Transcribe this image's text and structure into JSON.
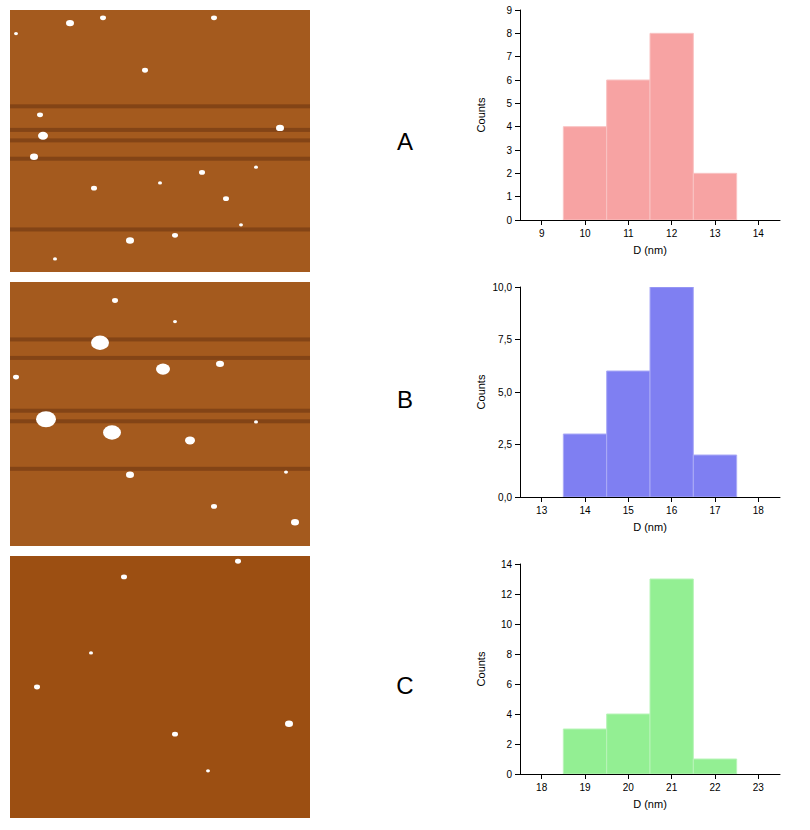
{
  "chart_data": [
    {
      "type": "histogram",
      "title": "A",
      "xlabel": "D (nm)",
      "ylabel": "Counts",
      "bins": [
        9.5,
        10.5,
        11.5,
        12.5,
        13.5
      ],
      "values": [
        4,
        6,
        8,
        2
      ],
      "color": "#f7a3a3",
      "xlim": [
        8.5,
        14.5
      ],
      "xticks": [
        9,
        10,
        11,
        12,
        13,
        14
      ],
      "ylim": [
        0,
        9
      ],
      "yticks": [
        0,
        1,
        2,
        3,
        4,
        5,
        6,
        7,
        8,
        9
      ],
      "grid": false
    },
    {
      "type": "histogram",
      "title": "B",
      "xlabel": "D (nm)",
      "ylabel": "Counts",
      "bins": [
        13.5,
        14.5,
        15.5,
        16.5,
        17.5
      ],
      "values": [
        3,
        6,
        10,
        2
      ],
      "color": "#7f7ff2",
      "xlim": [
        12.5,
        18.5
      ],
      "xticks": [
        13,
        14,
        15,
        16,
        17,
        18
      ],
      "ylim": [
        0,
        10
      ],
      "yticks": [
        {
          "value": 0,
          "label": "0,0"
        },
        {
          "value": 2.5,
          "label": "2,5"
        },
        {
          "value": 5,
          "label": "5,0"
        },
        {
          "value": 7.5,
          "label": "7,5"
        },
        {
          "value": 10,
          "label": "10,0"
        }
      ],
      "grid": false
    },
    {
      "type": "histogram",
      "title": "C",
      "xlabel": "D (nm)",
      "ylabel": "Counts",
      "bins": [
        18.5,
        19.5,
        20.5,
        21.5,
        22.5
      ],
      "values": [
        3,
        4,
        13,
        1
      ],
      "color": "#93ef93",
      "xlim": [
        17.5,
        23.5
      ],
      "xticks": [
        18,
        19,
        20,
        21,
        22,
        23
      ],
      "ylim": [
        0,
        14
      ],
      "yticks": [
        0,
        2,
        4,
        6,
        8,
        10,
        12,
        14
      ],
      "grid": false
    }
  ]
}
